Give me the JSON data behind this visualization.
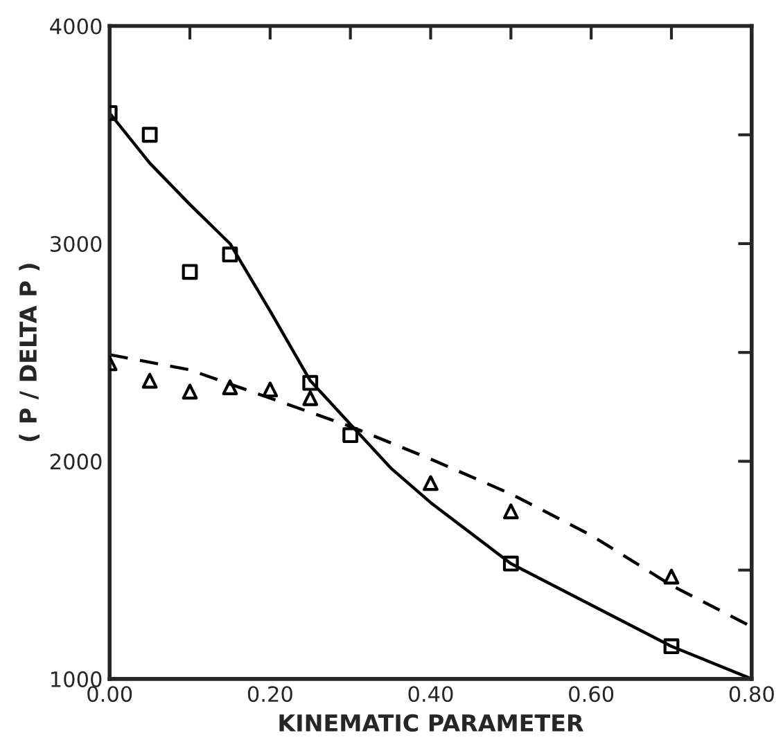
{
  "chart_data": {
    "type": "scatter",
    "xlabel": "KINEMATIC PARAMETER",
    "ylabel": "( P / DELTA P )",
    "xlim": [
      0,
      0.8
    ],
    "ylim": [
      1000,
      4000
    ],
    "xticks": [
      {
        "value": 0,
        "label": "0.00"
      },
      {
        "value": 0.1,
        "label": null
      },
      {
        "value": 0.2,
        "label": "0.20"
      },
      {
        "value": 0.3,
        "label": null
      },
      {
        "value": 0.4,
        "label": "0.40"
      },
      {
        "value": 0.5,
        "label": null
      },
      {
        "value": 0.6,
        "label": "0.60"
      },
      {
        "value": 0.7,
        "label": null
      },
      {
        "value": 0.8,
        "label": "0.80"
      }
    ],
    "yticks": [
      1000,
      {
        "value": 1500,
        "label": null
      },
      2000,
      {
        "value": 2500,
        "label": null
      },
      3000,
      {
        "value": 3500,
        "label": null
      },
      4000
    ],
    "grid": false,
    "legend": false,
    "series": [
      {
        "marker": "square",
        "color": "#000000",
        "x": [
          0,
          0.05,
          0.1,
          0.15,
          0.25,
          0.3,
          0.5,
          0.7
        ],
        "values": [
          3600,
          3500,
          2870,
          2950,
          2360,
          2120,
          1530,
          1150
        ]
      },
      {
        "marker": "triangle",
        "color": "#000000",
        "x": [
          0,
          0.05,
          0.1,
          0.15,
          0.2,
          0.25,
          0.4,
          0.5,
          0.7
        ],
        "values": [
          2450,
          2370,
          2320,
          2340,
          2330,
          2290,
          1900,
          1770,
          1470
        ]
      },
      {
        "type": "line",
        "line_style": "solid",
        "color": "#000000",
        "x": [
          0,
          0.05,
          0.1,
          0.15,
          0.2,
          0.25,
          0.3,
          0.35,
          0.4,
          0.5,
          0.6,
          0.7,
          0.8
        ],
        "values": [
          3600,
          3370,
          3180,
          3000,
          2690,
          2370,
          2170,
          1970,
          1810,
          1530,
          1340,
          1150,
          1000
        ]
      },
      {
        "type": "line",
        "line_style": "dashed",
        "color": "#000000",
        "x": [
          0,
          0.1,
          0.2,
          0.3,
          0.4,
          0.5,
          0.6,
          0.7,
          0.8
        ],
        "values": [
          2490,
          2420,
          2290,
          2160,
          2010,
          1850,
          1660,
          1430,
          1240
        ]
      }
    ]
  }
}
